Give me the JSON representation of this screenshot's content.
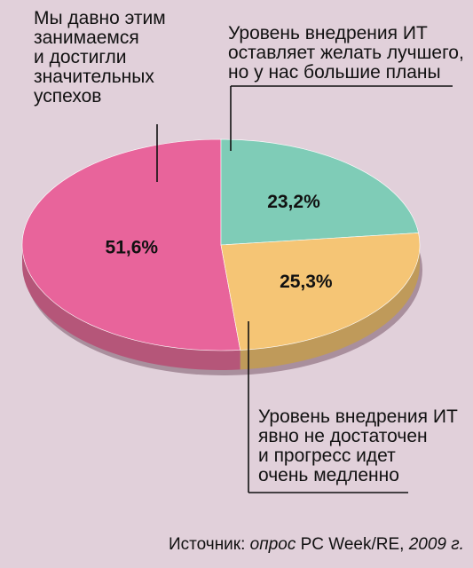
{
  "chart_data": {
    "type": "pie",
    "slices": [
      {
        "label": "Мы давно этим занимаемся и достигли значительных успехов",
        "value": 51.6,
        "value_label": "51,6%",
        "color": "#e8649b",
        "side_color": "#b55679"
      },
      {
        "label": "Уровень внедрения ИТ оставляет желать лучшего, но у нас большие планы",
        "value": 23.2,
        "value_label": "23,2%",
        "color": "#7fccb7",
        "side_color": "#5d9a8b"
      },
      {
        "label": "Уровень внедрения ИТ явно не достаточен и прогресс идет очень медленно",
        "value": 25.3,
        "value_label": "25,3%",
        "color": "#f5c575",
        "side_color": "#bf9a5a"
      }
    ]
  },
  "labels": {
    "pink": "Мы давно этим\nзанимаемся\nи достигли\nзначительных\nуспехов",
    "teal": "Уровень внедрения ИТ\nоставляет желать лучшего,\nно у нас большие планы",
    "yellow": "Уровень внедрения ИТ\nявно не достаточен\nи прогресс идет\nочень медленно"
  },
  "source": {
    "prefix": "Источник: ",
    "em1": "опрос",
    "mid": " PC Week/RE, ",
    "em2": "2009 г."
  },
  "colors": {
    "background": "#e1d0da",
    "pie_shadow": "#7b5a6b"
  }
}
